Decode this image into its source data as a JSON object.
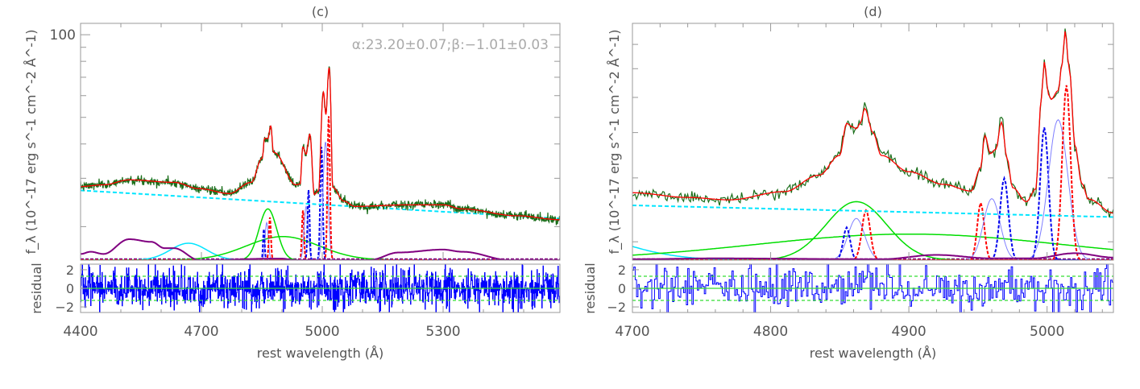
{
  "chart_data": [
    {
      "type": "line",
      "title": "(c)",
      "annotation": "α:23.20±0.07;β:−1.01±0.03",
      "xlabel": "rest wavelength (Å)",
      "ylabel": "f_λ (10^-17 erg s^-1 cm^-2 Å^-1)",
      "ylabel_residual": "residual",
      "xlim": [
        4400,
        5590
      ],
      "ylim": [
        15.1,
        110
      ],
      "yscale": "log",
      "xticks": [
        4400,
        4700,
        5000,
        5300
      ],
      "xtick_labels": [
        "4400",
        "4700",
        "5000",
        "5300"
      ],
      "yticks_labeled": [
        100
      ],
      "ytick_labels": [
        "100"
      ],
      "yticks_minor": [
        90,
        80,
        70,
        60,
        50,
        40,
        30,
        20
      ],
      "residual_ylim": [
        -2.6,
        2.6
      ],
      "residual_yticks": [
        2,
        0,
        -2
      ],
      "residual_ytick_labels": [
        "2",
        "0",
        "−2"
      ],
      "residual_band": 1.3,
      "colors": {
        "data": "#1a6e1a",
        "model": "#ff0000",
        "continuum": "#00e5ff",
        "fe": "#800080",
        "broad": "#00dd00",
        "narrow_core": "#7f7fff",
        "narrow_blue": "#0000ee",
        "narrow_red": "#ff0000",
        "residual": "#0000ff",
        "band": "#33dd33",
        "annotation": "#aaaaaa"
      },
      "model": [
        [
          4400,
          28.0
        ],
        [
          4457,
          28.4
        ],
        [
          4521,
          29.6
        ],
        [
          4631,
          29.0
        ],
        [
          4695,
          27.5
        ],
        [
          4769,
          26.4
        ],
        [
          4824,
          29.0
        ],
        [
          4851,
          35.5
        ],
        [
          4857,
          42.0
        ],
        [
          4865,
          41.8
        ],
        [
          4872,
          46.5
        ],
        [
          4879,
          37.3
        ],
        [
          4934,
          28.4
        ],
        [
          4945,
          28.6
        ],
        [
          4952,
          39.0
        ],
        [
          4960,
          36.7
        ],
        [
          4969,
          43.4
        ],
        [
          4980,
          26.2
        ],
        [
          4991,
          27.0
        ],
        [
          5003,
          61.8
        ],
        [
          5009,
          51.2
        ],
        [
          5017,
          75.8
        ],
        [
          5026,
          27.8
        ],
        [
          5053,
          24.8
        ],
        [
          5081,
          23.7
        ],
        [
          5209,
          24.0
        ],
        [
          5301,
          24.0
        ],
        [
          5347,
          23.2
        ],
        [
          5484,
          21.9
        ],
        [
          5590,
          21.2
        ]
      ],
      "continuum": [
        [
          4400,
          27.1
        ],
        [
          5590,
          21.4
        ]
      ],
      "fe_template": [
        [
          4400,
          15.9
        ],
        [
          4425,
          16.2
        ],
        [
          4457,
          15.9
        ],
        [
          4521,
          18.0
        ],
        [
          4576,
          17.6
        ],
        [
          4608,
          16.7
        ],
        [
          4631,
          16.7
        ],
        [
          4695,
          15.1
        ],
        [
          4897,
          15.3
        ],
        [
          4934,
          15.1
        ],
        [
          5117,
          15.1
        ],
        [
          5190,
          16.1
        ],
        [
          5300,
          16.5
        ],
        [
          5347,
          16.2
        ],
        [
          5466,
          15.1
        ],
        [
          5590,
          15.1
        ]
      ],
      "gaussians": [
        {
          "kind": "continuum_feature",
          "center": 4668,
          "sigma": 45,
          "peak": 17.4
        },
        {
          "kind": "broad",
          "center": 4865,
          "sigma": 22,
          "peak": 23.2
        },
        {
          "kind": "broad",
          "center": 4902,
          "sigma": 90,
          "peak": 18.4
        },
        {
          "kind": "narrow_core",
          "center": 4862,
          "sigma": 4,
          "peak": 20.7
        },
        {
          "kind": "narrow_blue",
          "center": 4855,
          "sigma": 2,
          "peak": 19.6
        },
        {
          "kind": "narrow_red",
          "center": 4870,
          "sigma": 2.5,
          "peak": 21.6
        },
        {
          "kind": "narrow_red",
          "center": 4952,
          "sigma": 2.5,
          "peak": 22.9
        },
        {
          "kind": "narrow_core",
          "center": 4960,
          "sigma": 5,
          "peak": 23.7
        },
        {
          "kind": "narrow_blue",
          "center": 4966,
          "sigma": 2.5,
          "peak": 27.2
        },
        {
          "kind": "narrow_blue",
          "center": 4998,
          "sigma": 3,
          "peak": 39.0
        },
        {
          "kind": "narrow_core",
          "center": 5008,
          "sigma": 6,
          "peak": 40.7
        },
        {
          "kind": "narrow_red",
          "center": 5016,
          "sigma": 3,
          "peak": 50.5
        }
      ]
    },
    {
      "type": "line",
      "title": "(d)",
      "xlabel": "rest wavelength (Å)",
      "ylabel": "f_λ (10^-17 erg s^-1 cm^-2 Å^-1)",
      "ylabel_residual": "residual",
      "xlim": [
        4700,
        5048
      ],
      "ylim": [
        17.8,
        80
      ],
      "yscale": "log",
      "xticks": [
        4700,
        4800,
        4900,
        5000
      ],
      "xtick_labels": [
        "4700",
        "4800",
        "4900",
        "5000"
      ],
      "yticks_labeled": [],
      "ytick_labels": [],
      "yticks_minor": [
        70,
        60,
        50,
        40,
        30,
        20
      ],
      "residual_ylim": [
        -2.6,
        2.6
      ],
      "residual_yticks": [
        2,
        0,
        -2
      ],
      "residual_ytick_labels": [
        "2",
        "0",
        "−2"
      ],
      "residual_band": 1.3,
      "colors": {
        "data": "#1a6e1a",
        "model": "#ff0000",
        "continuum": "#00e5ff",
        "fe": "#800080",
        "broad": "#00dd00",
        "narrow_core": "#7f7fff",
        "narrow_blue": "#0000ee",
        "narrow_red": "#ff0000",
        "residual": "#0000ff",
        "band": "#33dd33"
      },
      "model": [
        [
          4700,
          27.3
        ],
        [
          4740,
          26.5
        ],
        [
          4770,
          26.1
        ],
        [
          4810,
          27.5
        ],
        [
          4835,
          30.5
        ],
        [
          4850,
          34.6
        ],
        [
          4855,
          42.4
        ],
        [
          4859,
          41.5
        ],
        [
          4862,
          41.0
        ],
        [
          4865,
          42.5
        ],
        [
          4868,
          46.6
        ],
        [
          4874,
          40.0
        ],
        [
          4880,
          34.6
        ],
        [
          4900,
          31.2
        ],
        [
          4925,
          28.8
        ],
        [
          4945,
          27.6
        ],
        [
          4952,
          32.0
        ],
        [
          4955,
          39.2
        ],
        [
          4959,
          35.0
        ],
        [
          4963,
          36.0
        ],
        [
          4967,
          42.7
        ],
        [
          4971,
          34.0
        ],
        [
          4975,
          28.2
        ],
        [
          4985,
          25.8
        ],
        [
          4992,
          28.0
        ],
        [
          4996,
          50.0
        ],
        [
          4998,
          62.6
        ],
        [
          5001,
          51.0
        ],
        [
          5003,
          49.4
        ],
        [
          5008,
          52.2
        ],
        [
          5011,
          62.0
        ],
        [
          5013,
          76.0
        ],
        [
          5016,
          60.0
        ],
        [
          5020,
          37.0
        ],
        [
          5025,
          29.0
        ],
        [
          5030,
          26.2
        ],
        [
          5048,
          24.0
        ]
      ],
      "continuum": [
        [
          4700,
          25.2
        ],
        [
          5048,
          23.4
        ]
      ],
      "fe_template": [
        [
          4700,
          17.9
        ],
        [
          4760,
          18.0
        ],
        [
          4880,
          17.9
        ],
        [
          4920,
          18.4
        ],
        [
          4960,
          18.0
        ],
        [
          4990,
          18.0
        ],
        [
          5020,
          18.6
        ],
        [
          5048,
          18.1
        ]
      ],
      "gaussians": [
        {
          "kind": "continuum_feature",
          "center": 4640,
          "sigma": 45,
          "peak": 22.0
        },
        {
          "kind": "broad",
          "center": 4862,
          "sigma": 22,
          "peak": 25.8
        },
        {
          "kind": "broad",
          "center": 4900,
          "sigma": 110,
          "peak": 21.0
        },
        {
          "kind": "narrow_core",
          "center": 4862,
          "sigma": 6,
          "peak": 23.2
        },
        {
          "kind": "narrow_blue",
          "center": 4855,
          "sigma": 2.5,
          "peak": 21.9
        },
        {
          "kind": "narrow_red",
          "center": 4869,
          "sigma": 3,
          "peak": 24.4
        },
        {
          "kind": "narrow_red",
          "center": 4952,
          "sigma": 2.5,
          "peak": 25.6
        },
        {
          "kind": "narrow_core",
          "center": 4960,
          "sigma": 6,
          "peak": 26.3
        },
        {
          "kind": "narrow_blue",
          "center": 4969,
          "sigma": 3,
          "peak": 29.9
        },
        {
          "kind": "narrow_blue",
          "center": 4998,
          "sigma": 3,
          "peak": 41.3
        },
        {
          "kind": "narrow_core",
          "center": 5008,
          "sigma": 7,
          "peak": 43.4
        },
        {
          "kind": "narrow_red",
          "center": 5014,
          "sigma": 3,
          "peak": 54.0
        }
      ]
    }
  ]
}
